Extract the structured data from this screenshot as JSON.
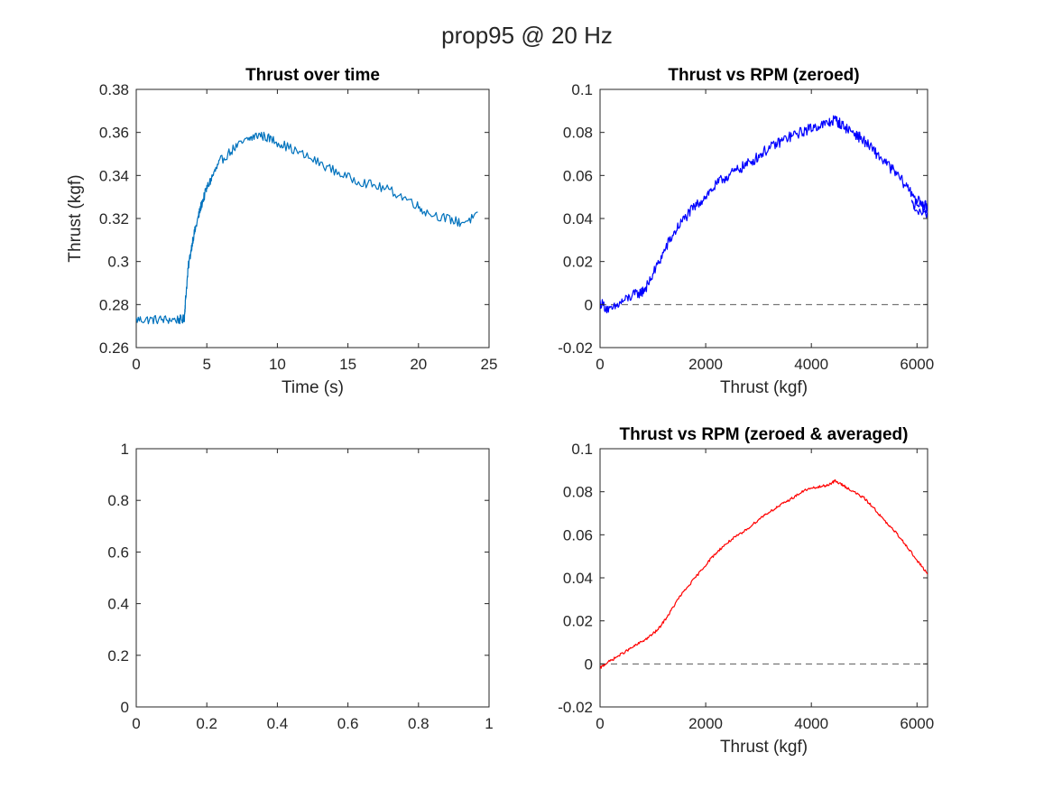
{
  "figure": {
    "title": "prop95 @ 20 Hz"
  },
  "chart_data": [
    {
      "id": "ax1",
      "type": "line",
      "title": "Thrust over time",
      "xlabel": "Time (s)",
      "ylabel": "Thrust (kgf)",
      "xlim": [
        0,
        25
      ],
      "ylim": [
        0.26,
        0.38
      ],
      "xticks": [
        0,
        5,
        10,
        15,
        20,
        25
      ],
      "xtick_labels": [
        "0",
        "5",
        "10",
        "15",
        "20",
        "25"
      ],
      "yticks": [
        0.26,
        0.28,
        0.3,
        0.32,
        0.34,
        0.36,
        0.38
      ],
      "ytick_labels": [
        "0.26",
        "0.28",
        "0.3",
        "0.32",
        "0.34",
        "0.36",
        "0.38"
      ],
      "grid": false,
      "series": [
        {
          "color": "#0072BD",
          "noise": 0.0022,
          "x": [
            0,
            1,
            2,
            3,
            3.4,
            3.5,
            3.7,
            4.0,
            4.3,
            4.6,
            5.0,
            5.5,
            6.0,
            7.0,
            8.0,
            8.7,
            9.5,
            10.5,
            12.0,
            13.5,
            15.0,
            16.5,
            18.0,
            19.5,
            20.5,
            22.0,
            23.0,
            24.2
          ],
          "y": [
            0.273,
            0.273,
            0.273,
            0.273,
            0.273,
            0.283,
            0.298,
            0.31,
            0.318,
            0.326,
            0.334,
            0.341,
            0.347,
            0.353,
            0.357,
            0.359,
            0.357,
            0.354,
            0.349,
            0.344,
            0.339,
            0.336,
            0.333,
            0.328,
            0.323,
            0.32,
            0.318,
            0.321
          ]
        }
      ]
    },
    {
      "id": "ax2",
      "type": "line",
      "title": "Thrust vs RPM (zeroed)",
      "xlabel": "Thrust (kgf)",
      "ylabel": "",
      "xlim": [
        0,
        6200
      ],
      "ylim": [
        -0.02,
        0.1
      ],
      "xticks": [
        0,
        2000,
        4000,
        6000
      ],
      "xtick_labels": [
        "0",
        "2000",
        "4000",
        "6000"
      ],
      "yticks": [
        -0.02,
        0,
        0.02,
        0.04,
        0.06,
        0.08,
        0.1
      ],
      "ytick_labels": [
        "-0.02",
        "0",
        "0.02",
        "0.04",
        "0.06",
        "0.08",
        "0.1"
      ],
      "grid": false,
      "zero_line": true,
      "series": [
        {
          "color": "#0000FF",
          "noise": 0.0025,
          "x": [
            0,
            200,
            400,
            600,
            800,
            900,
            1100,
            1300,
            1500,
            1700,
            1900,
            2100,
            2300,
            2500,
            2700,
            2900,
            3100,
            3300,
            3500,
            3700,
            3900,
            4100,
            4300,
            4450,
            4600,
            4800,
            5000,
            5200,
            5400,
            5600,
            5800,
            6000,
            6200,
            5900,
            6100,
            6200
          ],
          "y": [
            0.001,
            -0.003,
            0.001,
            0.004,
            0.006,
            0.009,
            0.019,
            0.029,
            0.037,
            0.043,
            0.048,
            0.053,
            0.058,
            0.061,
            0.064,
            0.067,
            0.071,
            0.074,
            0.077,
            0.079,
            0.081,
            0.083,
            0.084,
            0.086,
            0.083,
            0.08,
            0.076,
            0.071,
            0.066,
            0.061,
            0.055,
            0.049,
            0.042,
            0.046,
            0.047,
            0.045
          ]
        }
      ]
    },
    {
      "id": "ax3",
      "type": "line",
      "title": "",
      "xlabel": "",
      "ylabel": "",
      "xlim": [
        0,
        1
      ],
      "ylim": [
        0,
        1
      ],
      "xticks": [
        0,
        0.2,
        0.4,
        0.6,
        0.8,
        1
      ],
      "xtick_labels": [
        "0",
        "0.2",
        "0.4",
        "0.6",
        "0.8",
        "1"
      ],
      "yticks": [
        0,
        0.2,
        0.4,
        0.6,
        0.8,
        1
      ],
      "ytick_labels": [
        "0",
        "0.2",
        "0.4",
        "0.6",
        "0.8",
        "1"
      ],
      "grid": false,
      "series": []
    },
    {
      "id": "ax4",
      "type": "line",
      "title": "Thrust vs RPM (zeroed & averaged)",
      "xlabel": "Thrust (kgf)",
      "ylabel": "",
      "xlim": [
        0,
        6200
      ],
      "ylim": [
        -0.02,
        0.1
      ],
      "xticks": [
        0,
        2000,
        4000,
        6000
      ],
      "xtick_labels": [
        "0",
        "2000",
        "4000",
        "6000"
      ],
      "yticks": [
        -0.02,
        0,
        0.02,
        0.04,
        0.06,
        0.08,
        0.1
      ],
      "ytick_labels": [
        "-0.02",
        "0",
        "0.02",
        "0.04",
        "0.06",
        "0.08",
        "0.1"
      ],
      "grid": false,
      "zero_line": true,
      "series": [
        {
          "color": "#FF0000",
          "noise": 0.0006,
          "x": [
            0,
            100,
            300,
            500,
            700,
            900,
            1100,
            1300,
            1500,
            1700,
            1900,
            2100,
            2300,
            2500,
            2700,
            2900,
            3100,
            3300,
            3500,
            3700,
            3900,
            4100,
            4300,
            4450,
            4600,
            4800,
            5000,
            5200,
            5400,
            5600,
            5800,
            6000,
            6200
          ],
          "y": [
            -0.002,
            0.0,
            0.003,
            0.006,
            0.009,
            0.012,
            0.016,
            0.023,
            0.031,
            0.037,
            0.043,
            0.049,
            0.054,
            0.058,
            0.061,
            0.065,
            0.069,
            0.072,
            0.075,
            0.078,
            0.081,
            0.082,
            0.083,
            0.085,
            0.083,
            0.08,
            0.077,
            0.072,
            0.066,
            0.061,
            0.055,
            0.048,
            0.042
          ]
        }
      ]
    }
  ]
}
